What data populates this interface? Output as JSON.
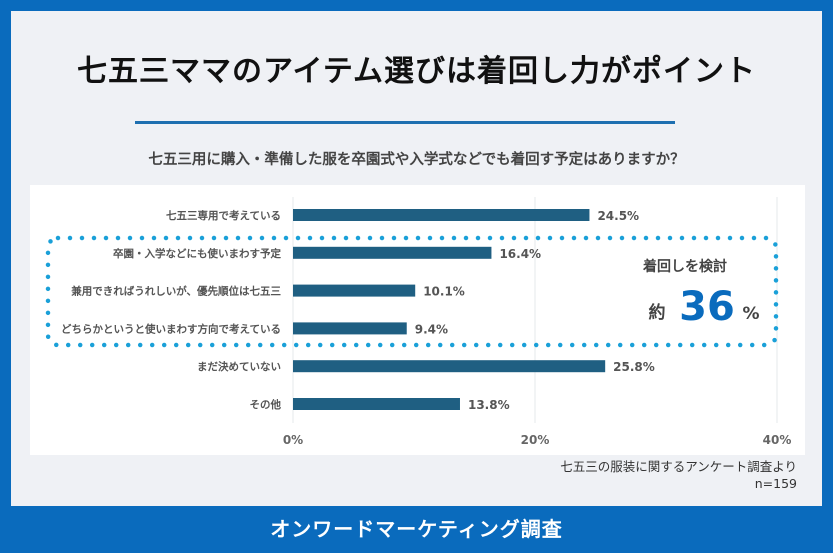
{
  "header": {
    "title": "七五三ママのアイテム選びは着回し力がポイント",
    "question": "七五三用に購入・準備した服を卒園式や入学式などでも着回す予定はありますか？"
  },
  "chart_data": {
    "type": "bar",
    "orientation": "horizontal",
    "categories": [
      "七五三専用で考えている",
      "卒園・入学などにも使いまわす予定",
      "兼用できればうれしいが、優先順位は七五三",
      "どちらかというと使いまわす方向で考えている",
      "まだ決めていない",
      "その他"
    ],
    "values": [
      24.5,
      16.4,
      10.1,
      9.4,
      25.8,
      13.8
    ],
    "data_labels": [
      "24.5%",
      "16.4%",
      "10.1%",
      "9.4%",
      "25.8%",
      "13.8%"
    ],
    "xlim": [
      0,
      40
    ],
    "x_ticks": [
      "0%",
      "20%",
      "40%"
    ],
    "grid": true,
    "bar_color": "#1f5f82",
    "annotation": {
      "label": "着回しを検討",
      "prefix": "約",
      "value": "36",
      "unit": "%",
      "highlight_color": "#1aa0d8",
      "value_color": "#0a6bbd",
      "highlighted_categories": [
        1,
        2,
        3
      ]
    }
  },
  "source": {
    "line1": "七五三の服装に関するアンケート調査より",
    "line2": "n=159"
  },
  "footer": {
    "text": "オンワードマーケティング調査"
  }
}
